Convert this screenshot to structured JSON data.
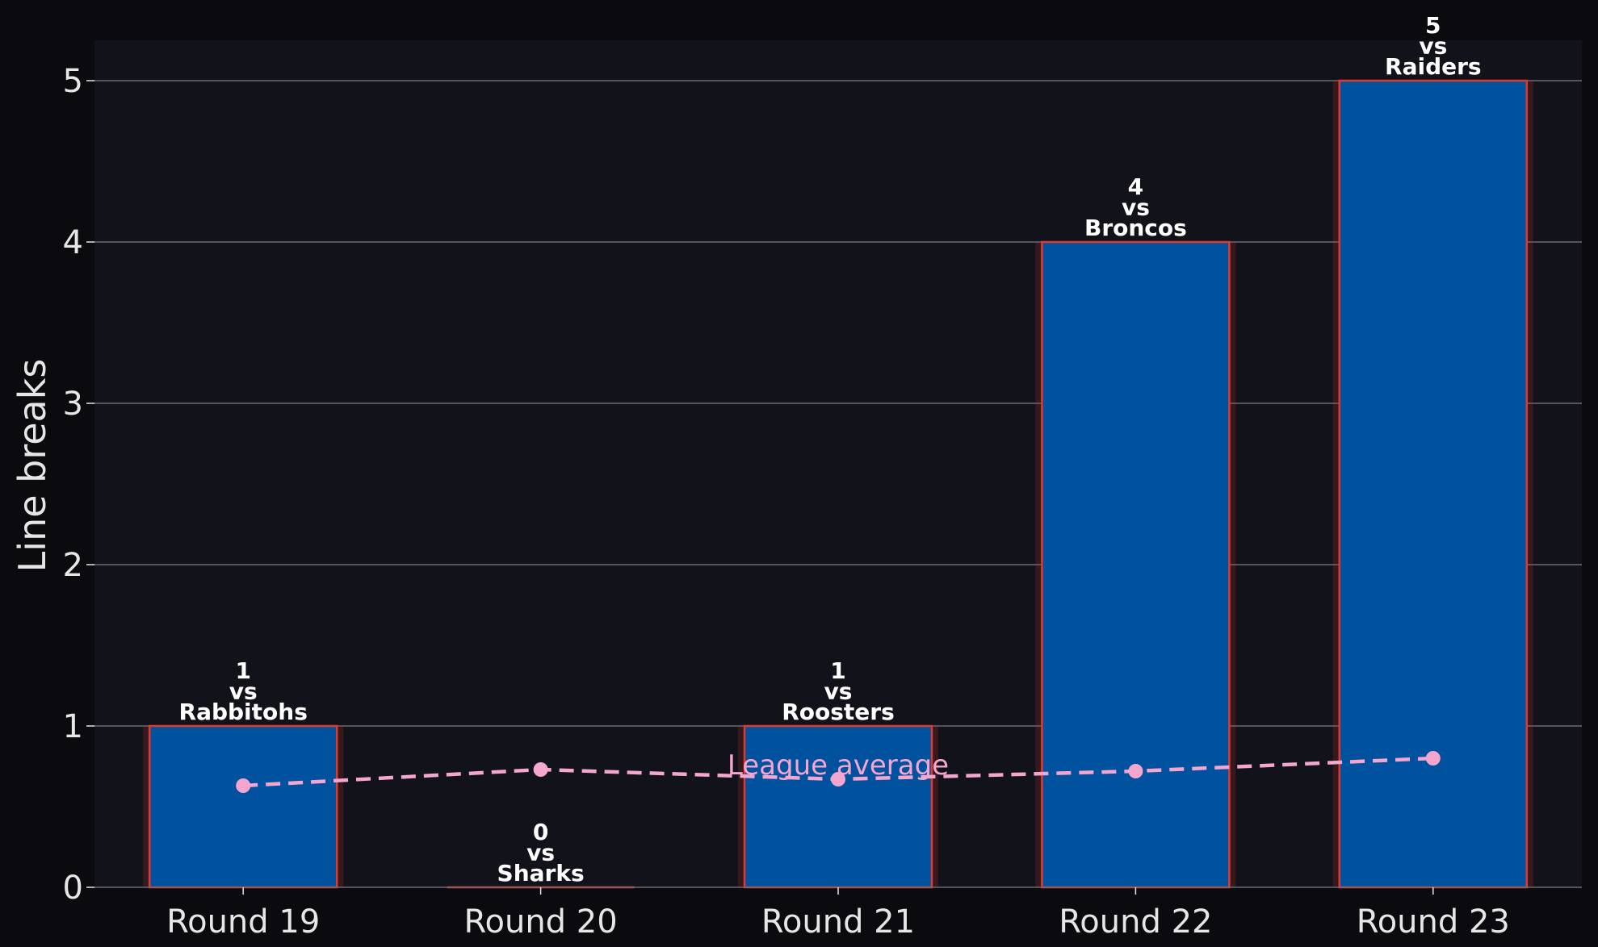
{
  "chart_data": {
    "type": "bar",
    "title": "",
    "xlabel": "",
    "ylabel": "Line breaks",
    "ylim": [
      0,
      5.25
    ],
    "yticks": [
      0,
      1,
      2,
      3,
      4,
      5
    ],
    "grid": "horizontal",
    "categories": [
      "Round 19",
      "Round 20",
      "Round 21",
      "Round 22",
      "Round 23"
    ],
    "series": [
      {
        "type": "bar",
        "values": [
          1,
          0,
          1,
          4,
          5
        ],
        "opponents": [
          "Rabbitohs",
          "Sharks",
          "Roosters",
          "Broncos",
          "Raiders"
        ],
        "label_joiner": "vs",
        "color": "#00519e",
        "edge_color": "#e03a2f"
      },
      {
        "type": "line",
        "name": "League average",
        "values": [
          0.63,
          0.73,
          0.67,
          0.72,
          0.8
        ],
        "color": "#f4a6cf",
        "style": "dashed"
      }
    ],
    "colors": {
      "background": "#0b0b0f",
      "plot_background": "#12121a",
      "grid": "#6a6a70",
      "text": "#e6e6e6"
    }
  }
}
